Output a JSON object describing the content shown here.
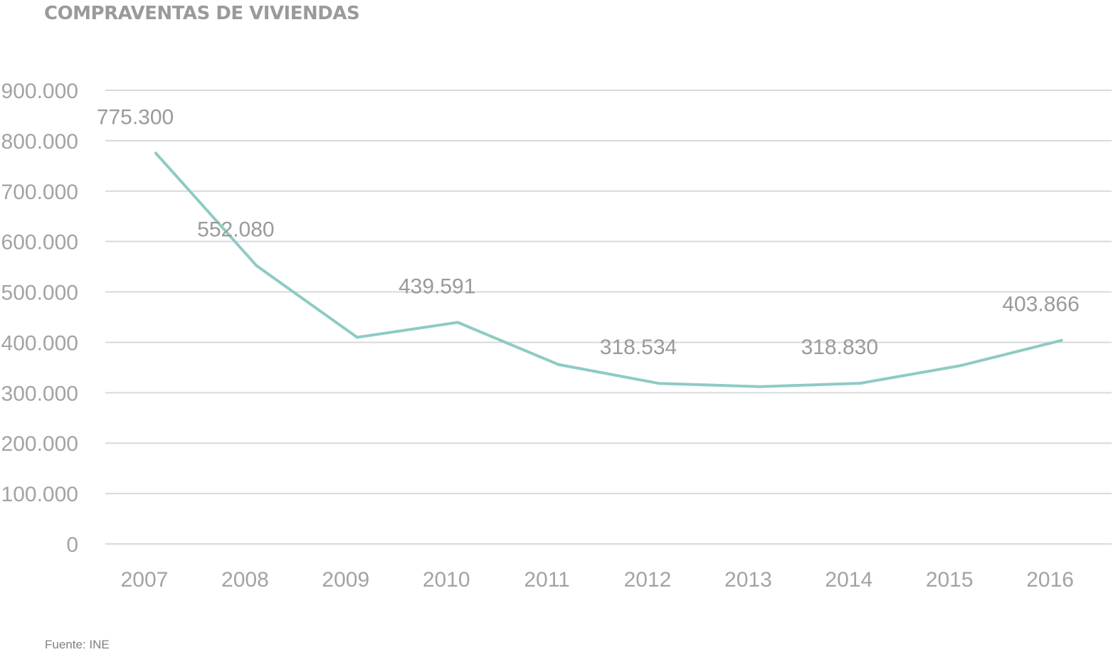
{
  "title": "COMPRAVENTAS DE VIVIENDAS",
  "source": "Fuente: INE",
  "colors": {
    "line": "#8ecbc4",
    "grid": "#d9d9d9",
    "text": "#a3a3a3",
    "title": "#9a9a9a"
  },
  "chart_data": {
    "type": "line",
    "title": "COMPRAVENTAS DE VIVIENDAS",
    "xlabel": "",
    "ylabel": "",
    "ylim": [
      0,
      900000
    ],
    "yticks": [
      0,
      100000,
      200000,
      300000,
      400000,
      500000,
      600000,
      700000,
      800000,
      900000
    ],
    "ytick_labels": [
      "0",
      "100.000",
      "200.000",
      "300.000",
      "400.000",
      "500.000",
      "600.000",
      "700.000",
      "800.000",
      "900.000"
    ],
    "grid": true,
    "legend": "none",
    "categories": [
      "2007",
      "2008",
      "2009",
      "2010",
      "2011",
      "2012",
      "2013",
      "2014",
      "2015",
      "2016"
    ],
    "series": [
      {
        "values": [
          775300,
          552080,
          410000,
          439591,
          356000,
          318534,
          312000,
          318830,
          354000,
          403866
        ]
      }
    ],
    "data_labels": [
      {
        "index": 0,
        "text": "775.300"
      },
      {
        "index": 1,
        "text": "552.080"
      },
      {
        "index": 3,
        "text": "439.591"
      },
      {
        "index": 5,
        "text": "318.534"
      },
      {
        "index": 7,
        "text": "318.830"
      },
      {
        "index": 9,
        "text": "403.866"
      }
    ]
  }
}
